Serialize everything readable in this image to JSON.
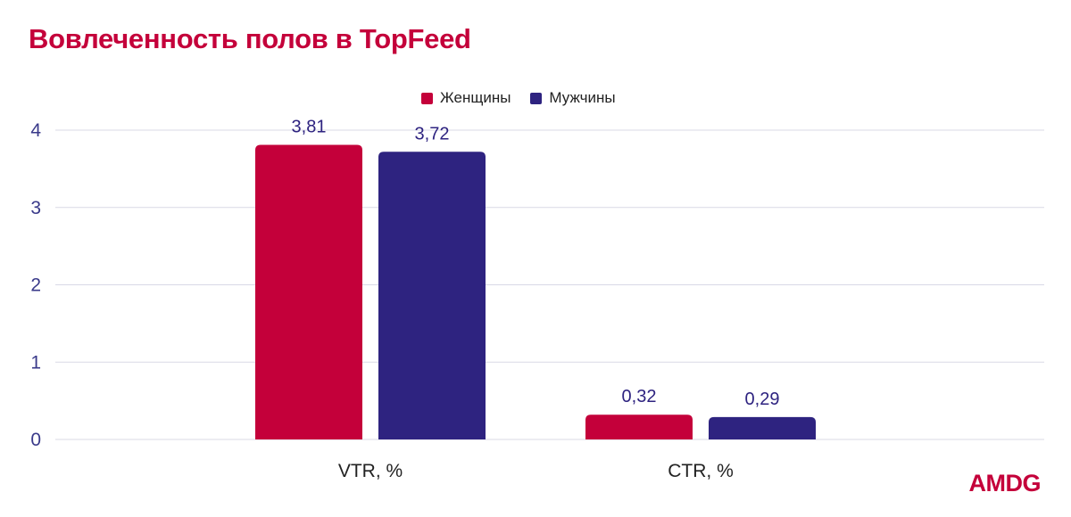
{
  "chart_data": {
    "type": "bar",
    "title": "Вовлеченность полов в TopFeed",
    "categories": [
      "VTR, %",
      "CTR, %"
    ],
    "series": [
      {
        "name": "Женщины",
        "color": "#c4003a",
        "values": [
          3.81,
          0.32
        ],
        "labels": [
          "3,81",
          "0,32"
        ]
      },
      {
        "name": "Мужчины",
        "color": "#2e2380",
        "values": [
          3.72,
          0.29
        ],
        "labels": [
          "3,72",
          "0,29"
        ]
      }
    ],
    "yticks": [
      "0",
      "1",
      "2",
      "3",
      "4"
    ],
    "ylim": [
      0,
      4
    ],
    "grid": true,
    "legend_position": "top-center"
  },
  "brand": {
    "logo_text": "AMDG",
    "accent_color": "#c4003a",
    "secondary_color": "#2e2380"
  }
}
